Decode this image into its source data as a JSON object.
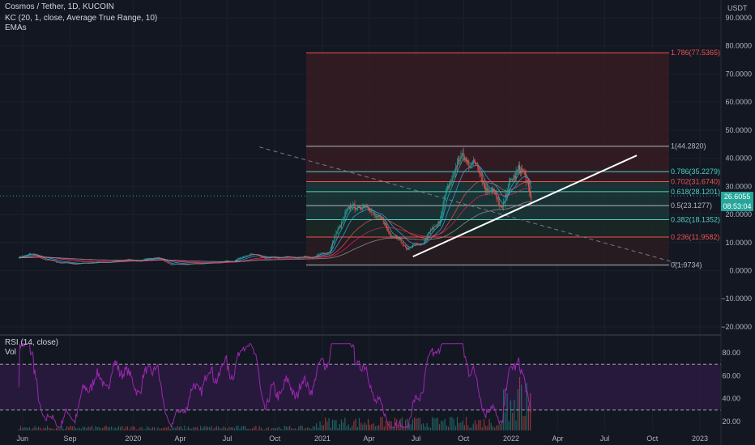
{
  "legend": {
    "title": "Cosmos / Tether, 1D, KUCOIN",
    "kc": "KC (20, 1, close, Average True Range, 10)",
    "emas": "EMAs",
    "rsi": "RSI (14, close)",
    "vol": "Vol"
  },
  "currency_label": "USDT",
  "price_badge": {
    "price": "26.6055",
    "countdown": "08:53:04",
    "color": "#26a69a"
  },
  "colors": {
    "background": "#131722",
    "up": "#26a69a",
    "down": "#ef5350",
    "fib_border": "#ef5350",
    "fib_fill": "#8b2e3a",
    "rsi": "#9c27b0",
    "rsi_band": "#2a1a3e",
    "trendline": "#ffffff"
  },
  "chart_data": [
    {
      "type": "candlestick",
      "pane": "price",
      "yaxis_ticks": [
        "90.0000",
        "80.0000",
        "70.0000",
        "60.0000",
        "50.0000",
        "40.0000",
        "30.0000",
        "20.0000",
        "10.0000",
        "0.0000",
        "−10.0000",
        "−20.0000"
      ],
      "ylim": [
        -21,
        95
      ],
      "x_ticks": [
        "Jun",
        "Sep",
        "2020",
        "Apr",
        "Jul",
        "Oct",
        "2021",
        "Apr",
        "Jul",
        "Oct",
        "2022",
        "Apr",
        "Jul",
        "Oct",
        "2023"
      ],
      "close_series": {
        "dates": [
          "2019-05-25",
          "2019-06-15",
          "2019-07-15",
          "2019-08-15",
          "2019-09-15",
          "2019-10-15",
          "2019-11-15",
          "2019-12-15",
          "2020-01-15",
          "2020-02-15",
          "2020-03-15",
          "2020-04-15",
          "2020-05-15",
          "2020-06-15",
          "2020-07-15",
          "2020-08-15",
          "2020-09-15",
          "2020-10-15",
          "2020-11-15",
          "2020-12-15",
          "2021-01-15",
          "2021-02-15",
          "2021-03-15",
          "2021-04-15",
          "2021-05-15",
          "2021-06-15",
          "2021-07-15",
          "2021-08-15",
          "2021-09-15",
          "2021-10-15",
          "2021-11-15",
          "2021-12-15",
          "2022-01-15",
          "2022-02-09"
        ],
        "values": [
          4.5,
          6.2,
          4.0,
          2.8,
          2.4,
          2.9,
          3.0,
          3.8,
          3.5,
          4.8,
          2.2,
          2.3,
          2.6,
          3.0,
          3.6,
          6.0,
          4.5,
          4.8,
          4.7,
          4.9,
          7.0,
          21.0,
          23.5,
          20.0,
          13.0,
          8.0,
          10.0,
          18.0,
          38.0,
          40.0,
          30.0,
          23.0,
          38.0,
          26.6
        ]
      },
      "fibonacci": [
        {
          "label": "1.786(77.5365)",
          "price": 77.5365
        },
        {
          "label": "1(44.2820)",
          "price": 44.282
        },
        {
          "label": "0.786(35.2279)",
          "price": 35.2279
        },
        {
          "label": "0.702(31.6740)",
          "price": 31.674
        },
        {
          "label": "0.618(28.1201)",
          "price": 28.1201
        },
        {
          "label": "0.5(23.1277)",
          "price": 23.1277
        },
        {
          "label": "0.382(18.1352)",
          "price": 18.1352
        },
        {
          "label": "0.236(11.9582)",
          "price": 11.9582
        },
        {
          "label": "0(1.9734)",
          "price": 1.9734
        }
      ],
      "trendline": {
        "from": {
          "date": "2021-06-25",
          "price": 5.0
        },
        "to": {
          "date": "2022-09-01",
          "price": 41.0
        }
      },
      "dashed_line": {
        "from": {
          "date": "2020-09-01",
          "price": 44.0
        },
        "to": {
          "date": "2022-12-01",
          "price": 2.0
        }
      }
    },
    {
      "type": "line",
      "pane": "rsi",
      "yaxis_ticks": [
        "80.00",
        "60.00",
        "40.00",
        "20.00"
      ],
      "ylim": [
        13,
        90
      ],
      "bands": [
        70,
        30
      ]
    }
  ]
}
